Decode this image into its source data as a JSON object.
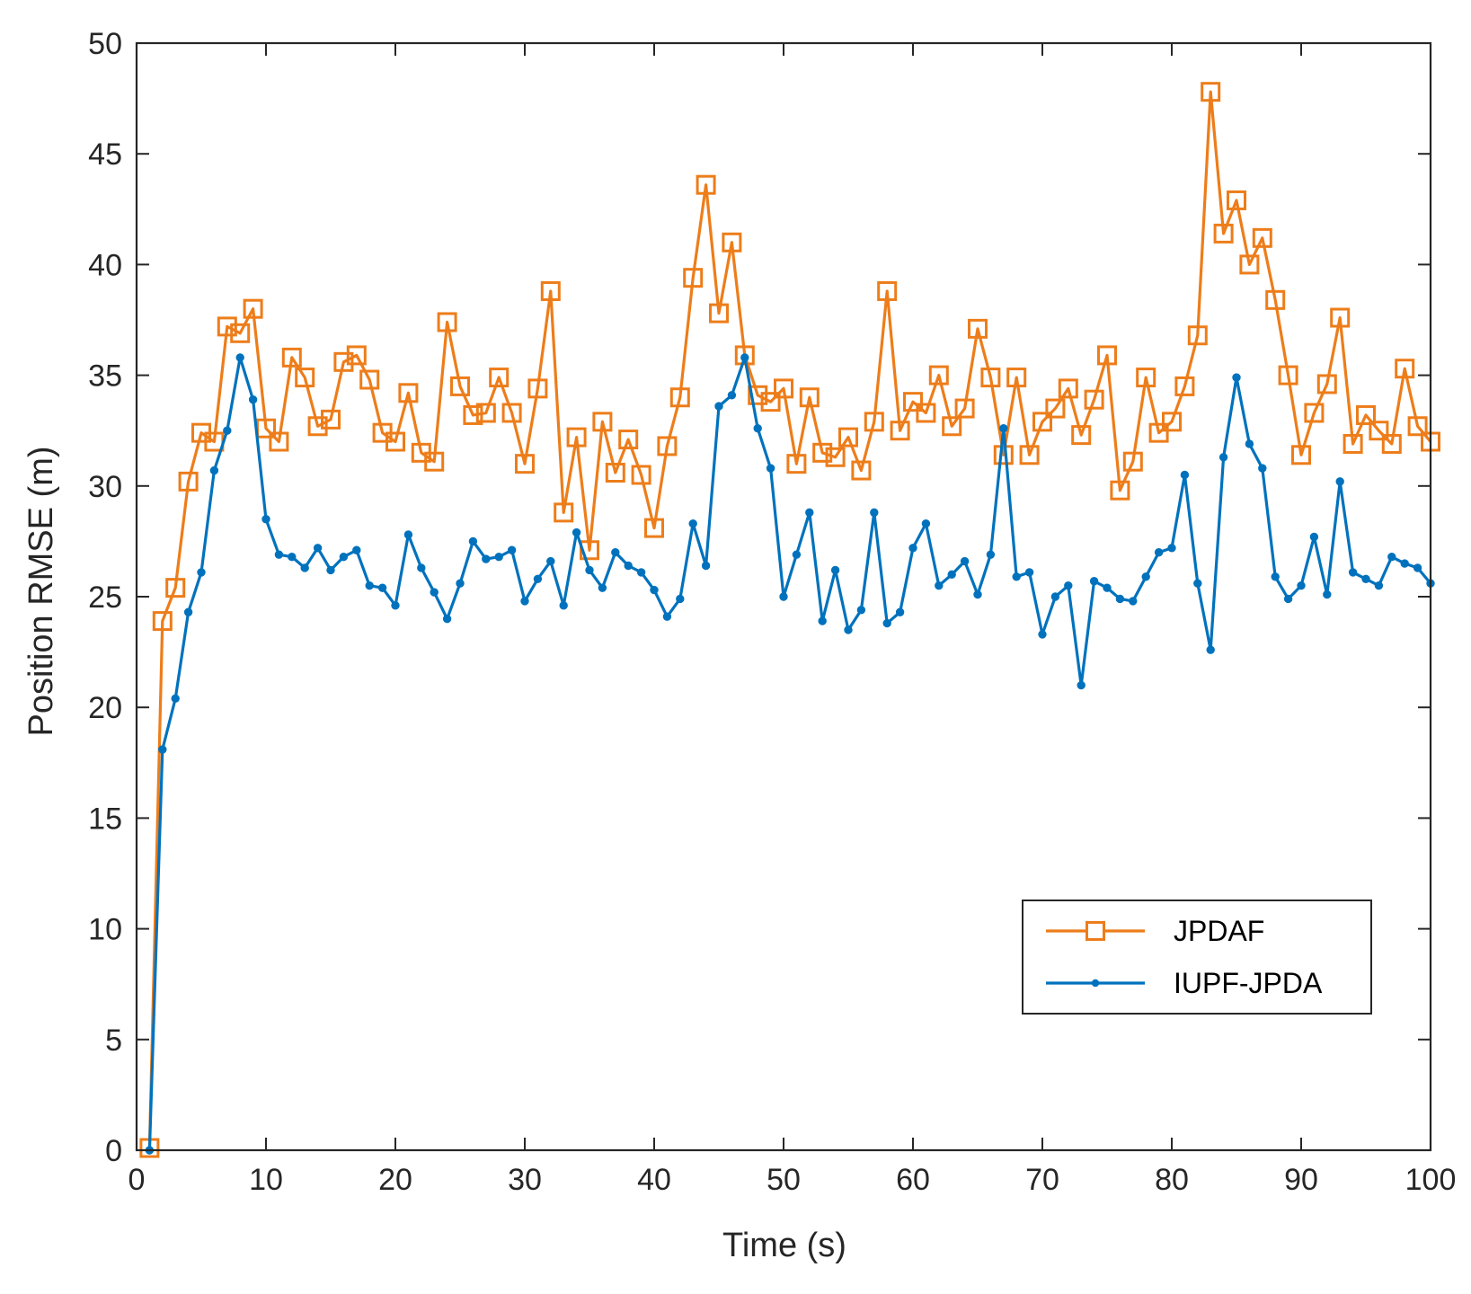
{
  "chart_data": {
    "type": "line",
    "title": "",
    "xlabel": "Time (s)",
    "ylabel": "Position RMSE (m)",
    "xlim": [
      0,
      100
    ],
    "ylim": [
      0,
      50
    ],
    "xticks": [
      0,
      10,
      20,
      30,
      40,
      50,
      60,
      70,
      80,
      90,
      100
    ],
    "yticks": [
      0,
      5,
      10,
      15,
      20,
      25,
      30,
      35,
      40,
      45,
      50
    ],
    "grid": false,
    "legend_position": "lower-right",
    "x": [
      1,
      2,
      3,
      4,
      5,
      6,
      7,
      8,
      9,
      10,
      11,
      12,
      13,
      14,
      15,
      16,
      17,
      18,
      19,
      20,
      21,
      22,
      23,
      24,
      25,
      26,
      27,
      28,
      29,
      30,
      31,
      32,
      33,
      34,
      35,
      36,
      37,
      38,
      39,
      40,
      41,
      42,
      43,
      44,
      45,
      46,
      47,
      48,
      49,
      50,
      51,
      52,
      53,
      54,
      55,
      56,
      57,
      58,
      59,
      60,
      61,
      62,
      63,
      64,
      65,
      66,
      67,
      68,
      69,
      70,
      71,
      72,
      73,
      74,
      75,
      76,
      77,
      78,
      79,
      80,
      81,
      82,
      83,
      84,
      85,
      86,
      87,
      88,
      89,
      90,
      91,
      92,
      93,
      94,
      95,
      96,
      97,
      98,
      99,
      100
    ],
    "series": [
      {
        "name": "JPDAF",
        "color": "#ED7D1A",
        "marker": "square",
        "values": [
          0.1,
          23.9,
          25.4,
          30.2,
          32.4,
          32.0,
          37.2,
          36.9,
          38.0,
          32.6,
          32.0,
          35.8,
          34.9,
          32.7,
          33.0,
          35.6,
          35.9,
          34.8,
          32.4,
          32.0,
          34.2,
          31.5,
          31.1,
          37.4,
          34.5,
          33.2,
          33.3,
          34.9,
          33.3,
          31.0,
          34.4,
          38.8,
          28.8,
          32.2,
          27.1,
          32.9,
          30.6,
          32.1,
          30.5,
          28.1,
          31.8,
          34.0,
          39.4,
          43.6,
          37.8,
          41.0,
          35.9,
          34.1,
          33.8,
          34.4,
          31.0,
          34.0,
          31.5,
          31.3,
          32.2,
          30.7,
          32.9,
          38.8,
          32.5,
          33.8,
          33.3,
          35.0,
          32.7,
          33.5,
          37.1,
          34.9,
          31.4,
          34.9,
          31.4,
          32.9,
          33.5,
          34.4,
          32.3,
          33.9,
          35.9,
          29.8,
          31.1,
          34.9,
          32.4,
          32.9,
          34.5,
          36.8,
          47.8,
          41.4,
          42.9,
          40.0,
          41.2,
          38.4,
          35.0,
          31.4,
          33.3,
          34.6,
          37.6,
          31.9,
          33.2,
          32.5,
          31.9,
          35.3,
          32.7,
          32.0
        ]
      },
      {
        "name": "IUPF-JPDA",
        "color": "#0072BD",
        "marker": "dot",
        "values": [
          0.0,
          18.1,
          20.4,
          24.3,
          26.1,
          30.7,
          32.5,
          35.8,
          33.9,
          28.5,
          26.9,
          26.8,
          26.3,
          27.2,
          26.2,
          26.8,
          27.1,
          25.5,
          25.4,
          24.6,
          27.8,
          26.3,
          25.2,
          24.0,
          25.6,
          27.5,
          26.7,
          26.8,
          27.1,
          24.8,
          25.8,
          26.6,
          24.6,
          27.9,
          26.2,
          25.4,
          27.0,
          26.4,
          26.1,
          25.3,
          24.1,
          24.9,
          28.3,
          26.4,
          33.6,
          34.1,
          35.8,
          32.6,
          30.8,
          25.0,
          26.9,
          28.8,
          23.9,
          26.2,
          23.5,
          24.4,
          28.8,
          23.8,
          24.3,
          27.2,
          28.3,
          25.5,
          26.0,
          26.6,
          25.1,
          26.9,
          32.6,
          25.9,
          26.1,
          23.3,
          25.0,
          25.5,
          21.0,
          25.7,
          25.4,
          24.9,
          24.8,
          25.9,
          27.0,
          27.2,
          30.5,
          25.6,
          22.6,
          31.3,
          34.9,
          31.9,
          30.8,
          25.9,
          24.9,
          25.5,
          27.7,
          25.1,
          30.2,
          26.1,
          25.8,
          25.5,
          26.8,
          26.5,
          26.3,
          25.6
        ]
      }
    ]
  }
}
